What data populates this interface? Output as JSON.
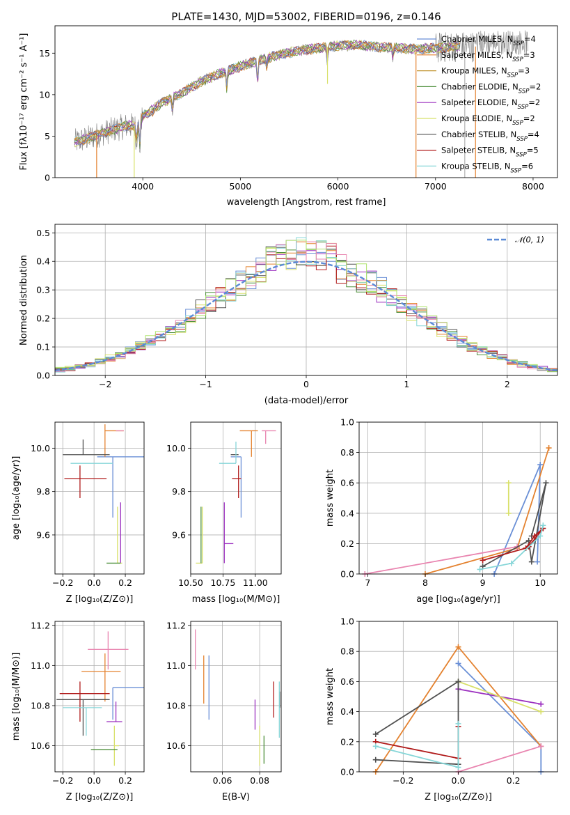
{
  "page": {
    "title": "PLATE=1430, MJD=53002, FIBERID=0196, z=0.146"
  },
  "colors": {
    "Chabrier MILES": "#6a8fd6",
    "Salpeter MILES": "#e4822f",
    "Kroupa MILES": "#c0912a",
    "Chabrier ELODIE": "#4d8f3a",
    "Salpeter ELODIE": "#9b2fbf",
    "Kroupa ELODIE": "#d8e06a",
    "Chabrier STELIB": "#505050",
    "Salpeter STELIB": "#b01a1a",
    "Kroupa STELIB": "#86d6d8",
    "pink": "#e985b0",
    "green": "#aee36b",
    "gaussian": "#5b8ad6",
    "spectrum": "#808080"
  },
  "chart_data": [
    {
      "id": "spectrum",
      "type": "line",
      "title": "PLATE=1430, MJD=53002, FIBERID=0196, z=0.146",
      "xlabel": "wavelength [Angstrom, rest frame]",
      "ylabel": "Flux [fλ10⁻¹⁷ erg cm⁻² s⁻¹ A⁻¹]",
      "xlim": [
        3100,
        8250
      ],
      "ylim": [
        0,
        18.3
      ],
      "xticks": [
        4000,
        5000,
        6000,
        7000,
        8000
      ],
      "yticks": [
        0,
        5,
        10,
        15
      ],
      "grid": false,
      "legend_position": "top-right",
      "legend": [
        {
          "name": "Chabrier MILES",
          "nssp": "4"
        },
        {
          "name": "Salpeter MILES",
          "nssp": "3"
        },
        {
          "name": "Kroupa MILES",
          "nssp": "3"
        },
        {
          "name": "Chabrier ELODIE",
          "nssp": "2"
        },
        {
          "name": "Salpeter ELODIE",
          "nssp": "2"
        },
        {
          "name": "Kroupa ELODIE",
          "nssp": "2"
        },
        {
          "name": "Chabrier STELIB",
          "nssp": "4"
        },
        {
          "name": "Salpeter STELIB",
          "nssp": "5"
        },
        {
          "name": "Kroupa STELIB",
          "nssp": "6"
        }
      ],
      "continuum": [
        [
          3300,
          4.3
        ],
        [
          3400,
          4.6
        ],
        [
          3550,
          5.2
        ],
        [
          3700,
          5.8
        ],
        [
          3850,
          6.3
        ],
        [
          3950,
          6.2
        ],
        [
          4000,
          7.4
        ],
        [
          4200,
          9.0
        ],
        [
          4400,
          10.2
        ],
        [
          4600,
          11.6
        ],
        [
          4800,
          12.6
        ],
        [
          5000,
          13.4
        ],
        [
          5200,
          14.2
        ],
        [
          5400,
          14.8
        ],
        [
          5600,
          15.3
        ],
        [
          5800,
          15.6
        ],
        [
          6000,
          15.9
        ],
        [
          6200,
          16.0
        ],
        [
          6400,
          15.8
        ],
        [
          6600,
          15.6
        ],
        [
          6800,
          15.5
        ],
        [
          7000,
          15.6
        ],
        [
          7200,
          15.8
        ]
      ],
      "absorption": [
        [
          3934,
          4.0
        ],
        [
          3969,
          3.5
        ],
        [
          4102,
          8.0
        ],
        [
          4304,
          7.8
        ],
        [
          4861,
          10.6
        ],
        [
          5176,
          11.0
        ],
        [
          5270,
          13.2
        ],
        [
          5892,
          13.8
        ],
        [
          6563,
          14.4
        ]
      ],
      "spikes": [
        [
          3527,
          0.0
        ],
        [
          3912,
          0.0
        ],
        [
          5893,
          11.3
        ],
        [
          6800,
          0.0
        ],
        [
          7300,
          0.0
        ],
        [
          7410,
          0.0
        ]
      ]
    },
    {
      "id": "residuals",
      "type": "step",
      "xlabel": "(data-model)/error",
      "ylabel": "Normed distribution",
      "xlim": [
        -2.5,
        2.5
      ],
      "ylim": [
        0,
        0.53
      ],
      "xticks": [
        -2,
        -1,
        0,
        1,
        2
      ],
      "yticks": [
        0.0,
        0.1,
        0.2,
        0.3,
        0.4,
        0.5
      ],
      "grid": true,
      "legend_position": "top-right",
      "legend": [
        {
          "name": "𝒩(0, 1)"
        }
      ],
      "bin_width": 0.1
    },
    {
      "id": "age-vs-z",
      "type": "scatter",
      "xlabel": "Z [log₁₀(Z/Z⊙)]",
      "ylabel": "age  [log₁₀(age/yr)]",
      "xlim": [
        -0.25,
        0.32
      ],
      "ylim": [
        9.42,
        10.12
      ],
      "xticks": [
        -0.2,
        0.0,
        0.2
      ],
      "yticks": [
        9.6,
        9.8,
        10.0
      ],
      "grid": true,
      "points": [
        {
          "series": "Chabrier MILES",
          "x": 0.12,
          "y": 9.96,
          "xerr": [
            0.1,
            0.2
          ],
          "yerr": [
            0.28,
            0.0
          ]
        },
        {
          "series": "Salpeter MILES",
          "x": 0.07,
          "y": 10.08,
          "xerr": [
            0.0,
            0.12
          ],
          "yerr": [
            0.12,
            0.03
          ]
        },
        {
          "series": "pink",
          "x": 0.14,
          "y": 10.08,
          "xerr": [
            0.0,
            0.05
          ],
          "yerr": [
            0.0,
            0.0
          ]
        },
        {
          "series": "Chabrier STELIB",
          "x": -0.07,
          "y": 9.97,
          "xerr": [
            0.13,
            0.17
          ],
          "yerr": [
            0.0,
            0.07
          ]
        },
        {
          "series": "Salpeter STELIB",
          "x": -0.09,
          "y": 9.86,
          "xerr": [
            0.1,
            0.17
          ],
          "yerr": [
            0.09,
            0.06
          ]
        },
        {
          "series": "Kroupa STELIB",
          "x": -0.02,
          "y": 9.93,
          "xerr": [
            0.13,
            0.14
          ],
          "yerr": [
            0.0,
            0.0
          ]
        },
        {
          "series": "Salpeter ELODIE",
          "x": 0.17,
          "y": 9.56,
          "xerr": [
            0.0,
            0.0
          ],
          "yerr": [
            0.09,
            0.19
          ]
        },
        {
          "series": "Kroupa ELODIE",
          "x": 0.15,
          "y": 9.47,
          "xerr": [
            0.0,
            0.03
          ],
          "yerr": [
            0.0,
            0.26
          ]
        },
        {
          "series": "Chabrier ELODIE",
          "x": 0.08,
          "y": 9.47,
          "xerr": [
            0.0,
            0.09
          ],
          "yerr": [
            0.0,
            0.0
          ]
        }
      ]
    },
    {
      "id": "age-vs-mass",
      "type": "scatter",
      "xlabel": "mass [log₁₀(M/M⊙)]",
      "ylabel": "",
      "xlim": [
        10.5,
        11.2
      ],
      "ylim": [
        9.42,
        10.12
      ],
      "xticks": [
        10.5,
        10.75,
        11.0
      ],
      "xtick_labels": [
        "10.50",
        "10.75",
        "11.00"
      ],
      "yticks": [
        9.6,
        9.8,
        10.0
      ],
      "grid": true,
      "points": [
        {
          "series": "Chabrier MILES",
          "x": 10.89,
          "y": 9.96,
          "xerr": [
            0.08,
            0.0
          ],
          "yerr": [
            0.28,
            0.0
          ]
        },
        {
          "series": "Salpeter MILES",
          "x": 10.97,
          "y": 10.08,
          "xerr": [
            0.09,
            0.05
          ],
          "yerr": [
            0.12,
            0.0
          ]
        },
        {
          "series": "pink",
          "x": 11.08,
          "y": 10.08,
          "xerr": [
            0.03,
            0.08
          ],
          "yerr": [
            0.06,
            0.0
          ]
        },
        {
          "series": "Chabrier STELIB",
          "x": 10.87,
          "y": 9.97,
          "xerr": [
            0.06,
            0.0
          ],
          "yerr": [
            0.0,
            0.0
          ]
        },
        {
          "series": "Salpeter STELIB",
          "x": 10.87,
          "y": 9.86,
          "xerr": [
            0.05,
            0.02
          ],
          "yerr": [
            0.09,
            0.06
          ]
        },
        {
          "series": "Kroupa STELIB",
          "x": 10.85,
          "y": 9.93,
          "xerr": [
            0.13,
            0.0
          ],
          "yerr": [
            0.0,
            0.1
          ]
        },
        {
          "series": "Salpeter ELODIE",
          "x": 10.76,
          "y": 9.56,
          "xerr": [
            0.0,
            0.07
          ],
          "yerr": [
            0.09,
            0.19
          ]
        },
        {
          "series": "Kroupa ELODIE",
          "x": 10.59,
          "y": 9.47,
          "xerr": [
            0.05,
            0.0
          ],
          "yerr": [
            0.0,
            0.26
          ]
        },
        {
          "series": "Chabrier ELODIE",
          "x": 10.58,
          "y": 9.47,
          "xerr": [
            0.0,
            0.0
          ],
          "yerr": [
            0.0,
            0.26
          ]
        }
      ]
    },
    {
      "id": "weight-vs-age",
      "type": "line",
      "xlabel": "age  [log₁₀(age/yr)]",
      "ylabel": "mass weight",
      "xlim": [
        6.85,
        10.3
      ],
      "ylim": [
        0,
        1.0
      ],
      "xticks": [
        7,
        8,
        9,
        10
      ],
      "yticks": [
        0.0,
        0.2,
        0.4,
        0.6,
        0.8,
        1.0
      ],
      "grid": true,
      "series": [
        {
          "name": "Chabrier MILES",
          "x": [
            9.2,
            10.0,
            9.95
          ],
          "y": [
            0.0,
            0.72,
            0.08
          ]
        },
        {
          "name": "Salpeter MILES",
          "x": [
            8.0,
            9.6,
            10.15
          ],
          "y": [
            0.0,
            0.17,
            0.83
          ]
        },
        {
          "name": "pink",
          "x": [
            6.95,
            9.6
          ],
          "y": [
            0.0,
            0.18
          ]
        },
        {
          "name": "Kroupa ELODIE",
          "x": [
            9.45,
            9.45
          ],
          "y": [
            0.4,
            0.6
          ]
        },
        {
          "name": "Chabrier STELIB",
          "x": [
            9.0,
            9.8,
            9.85,
            10.1,
            9.85
          ],
          "y": [
            0.05,
            0.22,
            0.08,
            0.6,
            0.25
          ]
        },
        {
          "name": "Salpeter STELIB",
          "x": [
            9.0,
            9.75,
            9.9,
            10.05,
            9.8
          ],
          "y": [
            0.09,
            0.17,
            0.25,
            0.3,
            0.18
          ]
        },
        {
          "name": "Kroupa STELIB",
          "x": [
            8.95,
            9.5,
            10.0,
            10.05
          ],
          "y": [
            0.03,
            0.07,
            0.25,
            0.32
          ]
        }
      ]
    },
    {
      "id": "mass-vs-z",
      "type": "scatter",
      "xlabel": "Z [log₁₀(Z/Z⊙)]",
      "ylabel": "mass [log₁₀(M/M⊙)]",
      "xlim": [
        -0.25,
        0.32
      ],
      "ylim": [
        10.47,
        11.22
      ],
      "xticks": [
        -0.2,
        0.0,
        0.2
      ],
      "yticks": [
        10.6,
        10.8,
        11.0,
        11.2
      ],
      "grid": true,
      "points": [
        {
          "series": "pink",
          "x": 0.09,
          "y": 11.08,
          "xerr": [
            0.13,
            0.13
          ],
          "yerr": [
            0.1,
            0.09
          ]
        },
        {
          "series": "Salpeter MILES",
          "x": 0.07,
          "y": 10.97,
          "xerr": [
            0.15,
            0.1
          ],
          "yerr": [
            0.15,
            0.09
          ]
        },
        {
          "series": "Chabrier MILES",
          "x": 0.12,
          "y": 10.89,
          "xerr": [
            0.0,
            0.2
          ],
          "yerr": [
            0.16,
            0.0
          ]
        },
        {
          "series": "Chabrier STELIB",
          "x": -0.07,
          "y": 10.83,
          "xerr": [
            0.17,
            0.17
          ],
          "yerr": [
            0.18,
            0.0
          ]
        },
        {
          "series": "Salpeter STELIB",
          "x": -0.09,
          "y": 10.86,
          "xerr": [
            0.13,
            0.19
          ],
          "yerr": [
            0.14,
            0.06
          ]
        },
        {
          "series": "Kroupa STELIB",
          "x": -0.05,
          "y": 10.79,
          "xerr": [
            0.15,
            0.1
          ],
          "yerr": [
            0.14,
            0.0
          ]
        },
        {
          "series": "Salpeter ELODIE",
          "x": 0.14,
          "y": 10.72,
          "xerr": [
            0.06,
            0.04
          ],
          "yerr": [
            0.0,
            0.1
          ]
        },
        {
          "series": "Kroupa ELODIE",
          "x": 0.13,
          "y": 10.6,
          "xerr": [
            0.0,
            0.03
          ],
          "yerr": [
            0.1,
            0.1
          ]
        },
        {
          "series": "Chabrier ELODIE",
          "x": 0.06,
          "y": 10.58,
          "xerr": [
            0.08,
            0.09
          ],
          "yerr": [
            0.0,
            0.0
          ]
        }
      ]
    },
    {
      "id": "mass-vs-ebv",
      "type": "scatter",
      "xlabel": "E(B-V)",
      "ylabel": "",
      "xlim": [
        0.043,
        0.0915
      ],
      "ylim": [
        10.47,
        11.22
      ],
      "xticks": [
        0.06,
        0.08
      ],
      "xtick_labels": [
        "0.06",
        "0.08"
      ],
      "yticks": [
        10.6,
        10.8,
        11.0,
        11.2
      ],
      "grid": true,
      "points": [
        {
          "series": "pink",
          "x": 0.0455,
          "y": 11.08,
          "yerr": [
            0.1,
            0.1
          ]
        },
        {
          "series": "Salpeter MILES",
          "x": 0.05,
          "y": 10.92,
          "yerr": [
            0.11,
            0.13
          ]
        },
        {
          "series": "Chabrier MILES",
          "x": 0.0528,
          "y": 10.89,
          "yerr": [
            0.16,
            0.16
          ]
        },
        {
          "series": "Salpeter ELODIE",
          "x": 0.0775,
          "y": 10.75,
          "yerr": [
            0.07,
            0.08
          ]
        },
        {
          "series": "Kroupa ELODIE",
          "x": 0.08,
          "y": 10.6,
          "yerr": [
            0.1,
            0.1
          ]
        },
        {
          "series": "Chabrier ELODIE",
          "x": 0.0823,
          "y": 10.58,
          "yerr": [
            0.07,
            0.07
          ]
        },
        {
          "series": "Salpeter STELIB",
          "x": 0.0875,
          "y": 10.83,
          "yerr": [
            0.09,
            0.09
          ]
        },
        {
          "series": "Chabrier STELIB",
          "x": 0.0907,
          "y": 10.83,
          "yerr": [
            0.04,
            0.04
          ]
        },
        {
          "series": "Kroupa STELIB",
          "x": 0.0905,
          "y": 10.78,
          "yerr": [
            0.14,
            0.14
          ]
        }
      ]
    },
    {
      "id": "weight-vs-z",
      "type": "line",
      "xlabel": "Z [log₁₀(Z/Z⊙)]",
      "ylabel": "mass weight",
      "xlim": [
        -0.36,
        0.36
      ],
      "ylim": [
        0,
        1.0
      ],
      "xticks": [
        -0.2,
        0.0,
        0.2
      ],
      "yticks": [
        0.0,
        0.2,
        0.4,
        0.6,
        0.8,
        1.0
      ],
      "grid": true,
      "series": [
        {
          "name": "Chabrier MILES",
          "x": [
            0.0,
            0.3,
            0.3
          ],
          "y": [
            0.72,
            0.17,
            0.0
          ]
        },
        {
          "name": "Salpeter MILES",
          "x": [
            -0.3,
            0.0,
            0.3
          ],
          "y": [
            0.0,
            0.83,
            0.17
          ]
        },
        {
          "name": "pink",
          "x": [
            0.0,
            0.3
          ],
          "y": [
            0.0,
            0.17
          ]
        },
        {
          "name": "Salpeter ELODIE",
          "x": [
            0.0,
            0.3
          ],
          "y": [
            0.55,
            0.45
          ]
        },
        {
          "name": "Kroupa ELODIE",
          "x": [
            0.0,
            0.3
          ],
          "y": [
            0.6,
            0.4
          ]
        },
        {
          "name": "Chabrier STELIB",
          "x": [
            -0.3,
            0.0,
            0.0,
            -0.3
          ],
          "y": [
            0.08,
            0.05,
            0.6,
            0.25
          ]
        },
        {
          "name": "Salpeter STELIB",
          "x": [
            -0.3,
            0.0,
            0.0
          ],
          "y": [
            0.2,
            0.09,
            0.3
          ]
        },
        {
          "name": "Kroupa STELIB",
          "x": [
            -0.3,
            0.0,
            0.0
          ],
          "y": [
            0.17,
            0.03,
            0.32
          ]
        }
      ]
    }
  ]
}
